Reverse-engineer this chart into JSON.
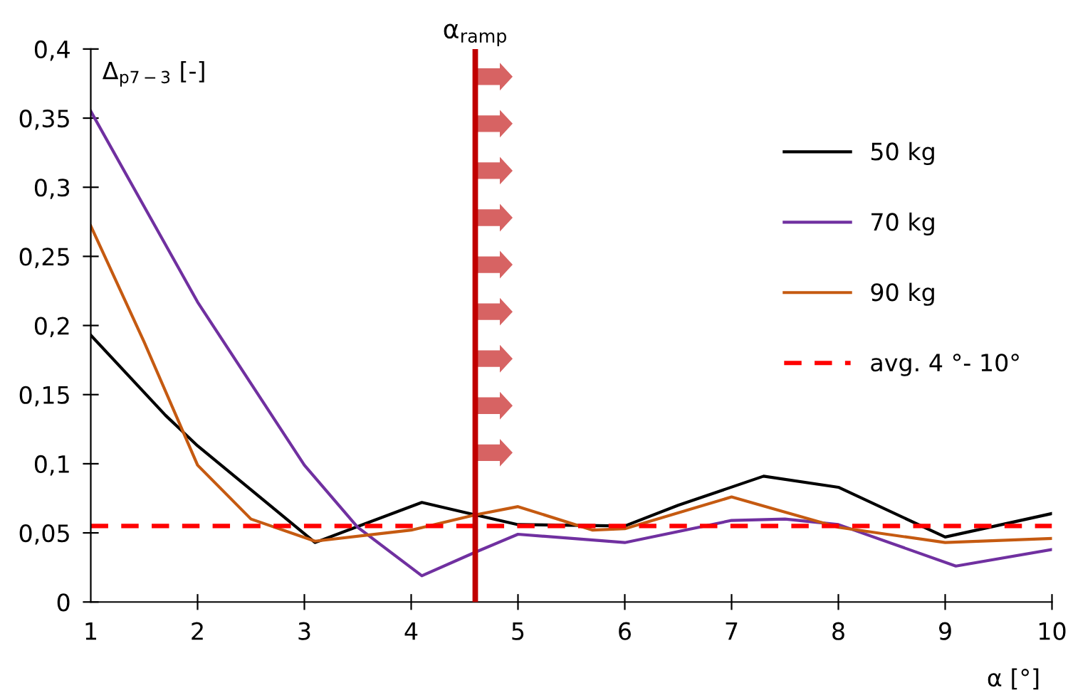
{
  "chart_data": {
    "type": "line",
    "xlabel": "α [°]",
    "ylabel": "Δ$_{p7−3}$ [-]",
    "xlim": [
      1,
      10
    ],
    "xticks": [
      1,
      2,
      3,
      4,
      5,
      6,
      7,
      8,
      9,
      10
    ],
    "ylim": [
      0,
      0.4
    ],
    "yticks": [
      0,
      {
        "value": 0.05,
        "label": "0,05"
      },
      {
        "value": 0.1,
        "label": "0,1"
      },
      {
        "value": 0.15,
        "label": "0,15"
      },
      {
        "value": 0.2,
        "label": "0,2"
      },
      {
        "value": 0.25,
        "label": "0,25"
      },
      {
        "value": 0.3,
        "label": "0,3"
      },
      {
        "value": 0.35,
        "label": "0,35"
      },
      {
        "value": 0.4,
        "label": "0,4"
      }
    ],
    "series": [
      {
        "name": "50 kg",
        "color": "#000000",
        "x": [
          1,
          1.7,
          2,
          3.1,
          4.1,
          4.6,
          5,
          6,
          6.5,
          7.3,
          8,
          9,
          10
        ],
        "values": [
          0.193,
          0.135,
          0.113,
          0.043,
          0.072,
          0.063,
          0.056,
          0.055,
          0.07,
          0.091,
          0.083,
          0.047,
          0.064
        ]
      },
      {
        "name": "70 kg",
        "color": "#7030a0",
        "x": [
          1,
          2,
          3,
          3.5,
          4.1,
          4.6,
          5,
          6,
          7,
          7.5,
          8,
          9.1,
          10
        ],
        "values": [
          0.355,
          0.217,
          0.099,
          0.054,
          0.019,
          0.036,
          0.049,
          0.043,
          0.059,
          0.06,
          0.056,
          0.026,
          0.038
        ]
      },
      {
        "name": "90 kg",
        "color": "#c55a11",
        "x": [
          1,
          1.5,
          2,
          2.5,
          3.1,
          4,
          4.6,
          5,
          5.7,
          6,
          7,
          8,
          9,
          10
        ],
        "values": [
          0.272,
          0.188,
          0.099,
          0.06,
          0.044,
          0.052,
          0.063,
          0.069,
          0.052,
          0.053,
          0.076,
          0.054,
          0.043,
          0.046
        ]
      }
    ],
    "ref_lines": [
      {
        "axis": "y",
        "value": 0.055,
        "label": "avg. 4 °- 10°",
        "color": "#ff0000",
        "line_style": "dashed"
      },
      {
        "axis": "x",
        "value": 4.6,
        "label": "α$_{ramp}$",
        "color": "#c00000",
        "line_style": "solid"
      }
    ],
    "legend": "right",
    "grid": false,
    "marker": "none",
    "line_style": "solid"
  }
}
